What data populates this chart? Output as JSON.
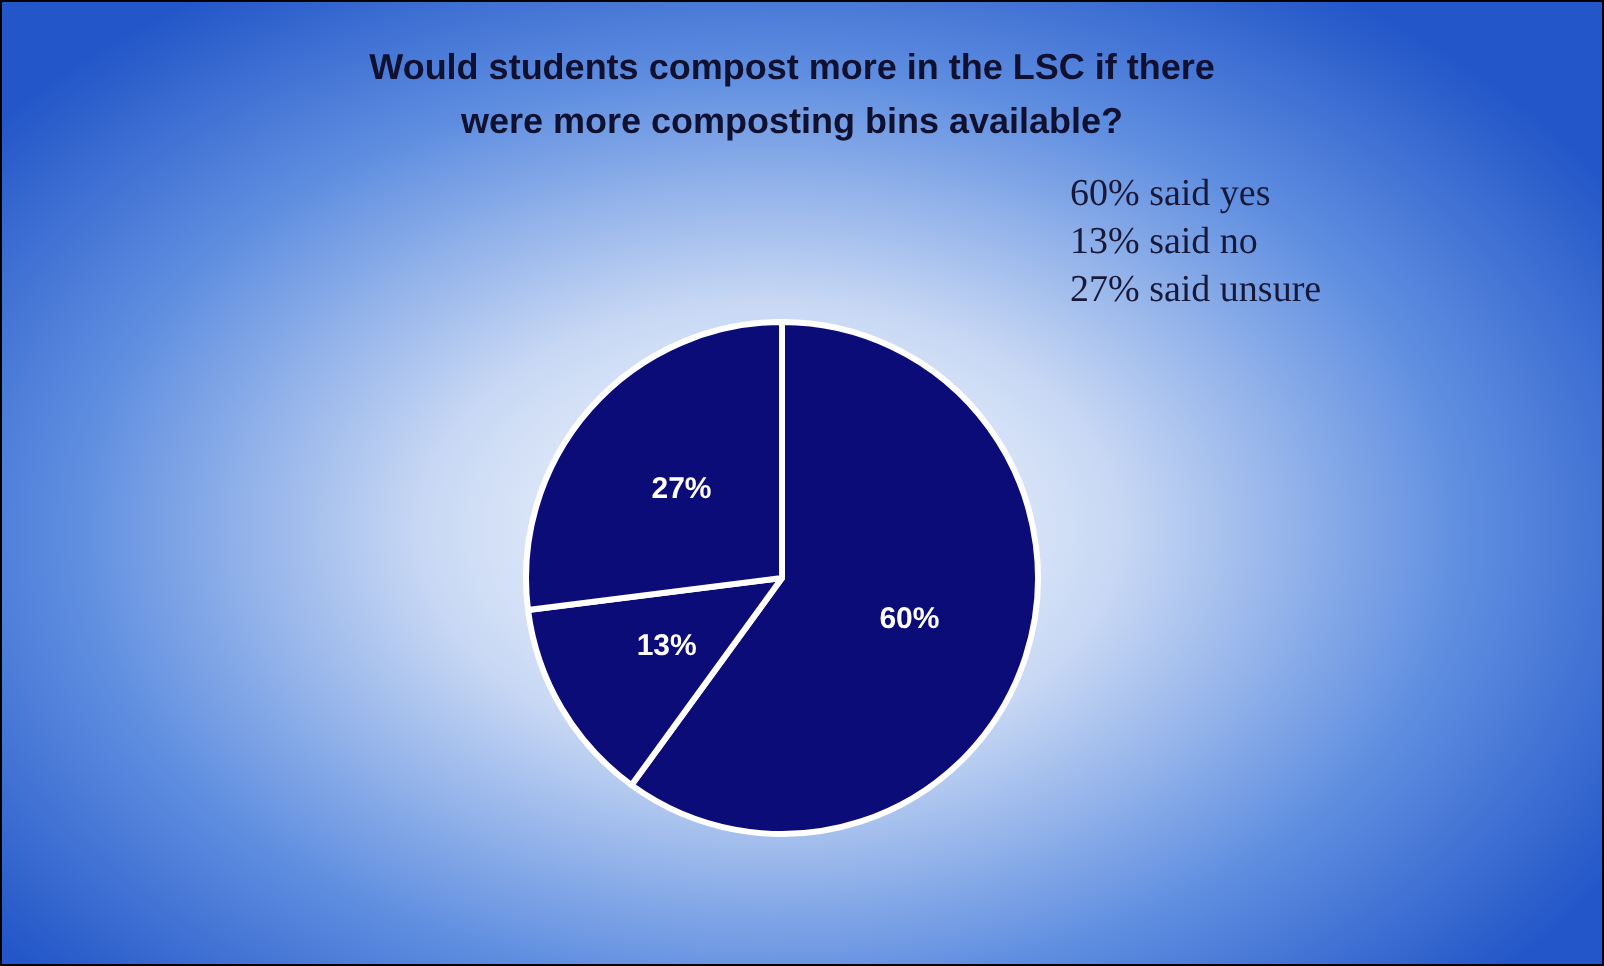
{
  "chart_data": {
    "type": "pie",
    "title": "Would students compost more in the LSC if there\nwere more composting bins available?",
    "categories": [
      null,
      null,
      null
    ],
    "values": [
      60,
      13,
      27
    ],
    "colors": [
      "#0c0c78",
      "#0c0c78",
      "#0c0c78"
    ],
    "value_labels": [
      "60%",
      "13%",
      "27%"
    ],
    "annotations": [
      "60% said yes",
      "13% said no",
      "27% said unsure"
    ]
  }
}
